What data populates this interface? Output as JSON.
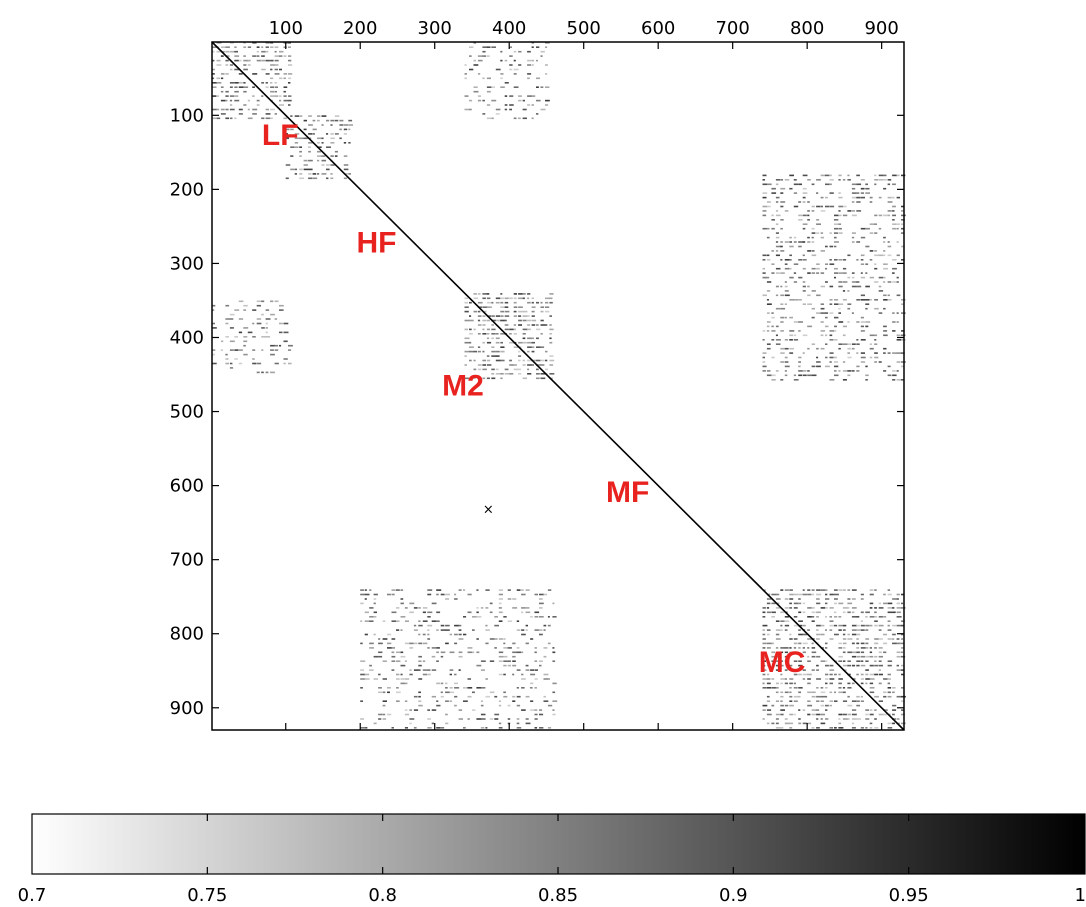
{
  "chart_data": {
    "type": "heatmap",
    "title": "",
    "xlabel": "",
    "ylabel": "",
    "xlim": [
      1,
      930
    ],
    "ylim": [
      1,
      930
    ],
    "x_axis_position": "top",
    "y_axis_direction": "down",
    "x_ticks": [
      100,
      200,
      300,
      400,
      500,
      600,
      700,
      800,
      900
    ],
    "y_ticks": [
      100,
      200,
      300,
      400,
      500,
      600,
      700,
      800,
      900
    ],
    "grid": false,
    "colormap": "white-to-black grayscale",
    "colorbar": {
      "position": "bottom",
      "range": [
        0.7,
        1
      ],
      "ticks": [
        "0.7",
        "0.75",
        "0.8",
        "0.85",
        "0.9",
        "0.95",
        "1"
      ]
    },
    "diagonal_value": 1,
    "blocks": [
      {
        "rows": [
          1,
          105
        ],
        "cols": [
          1,
          105
        ],
        "intensity": 0.55
      },
      {
        "rows": [
          100,
          185
        ],
        "cols": [
          100,
          185
        ],
        "intensity": 0.45
      },
      {
        "rows": [
          1,
          105
        ],
        "cols": [
          340,
          450
        ],
        "intensity": 0.3
      },
      {
        "rows": [
          340,
          460
        ],
        "cols": [
          340,
          460
        ],
        "intensity": 0.6
      },
      {
        "rows": [
          350,
          450
        ],
        "cols": [
          1,
          105
        ],
        "intensity": 0.3
      },
      {
        "rows": [
          180,
          460
        ],
        "cols": [
          740,
          930
        ],
        "intensity": 0.35
      },
      {
        "rows": [
          740,
          930
        ],
        "cols": [
          740,
          930
        ],
        "intensity": 0.55
      },
      {
        "rows": [
          740,
          930
        ],
        "cols": [
          200,
          460
        ],
        "intensity": 0.3
      }
    ],
    "marker": {
      "label": "×",
      "x": 372,
      "y": 632
    },
    "annotations": [
      {
        "text": "LF",
        "x": 68,
        "y": 140,
        "color": "#e8231f"
      },
      {
        "text": "HF",
        "x": 195,
        "y": 285,
        "color": "#e8231f"
      },
      {
        "text": "M2",
        "x": 310,
        "y": 478,
        "color": "#e8231f"
      },
      {
        "text": "MF",
        "x": 530,
        "y": 622,
        "color": "#e8231f"
      },
      {
        "text": "MC",
        "x": 735,
        "y": 852,
        "color": "#e8231f"
      }
    ]
  }
}
